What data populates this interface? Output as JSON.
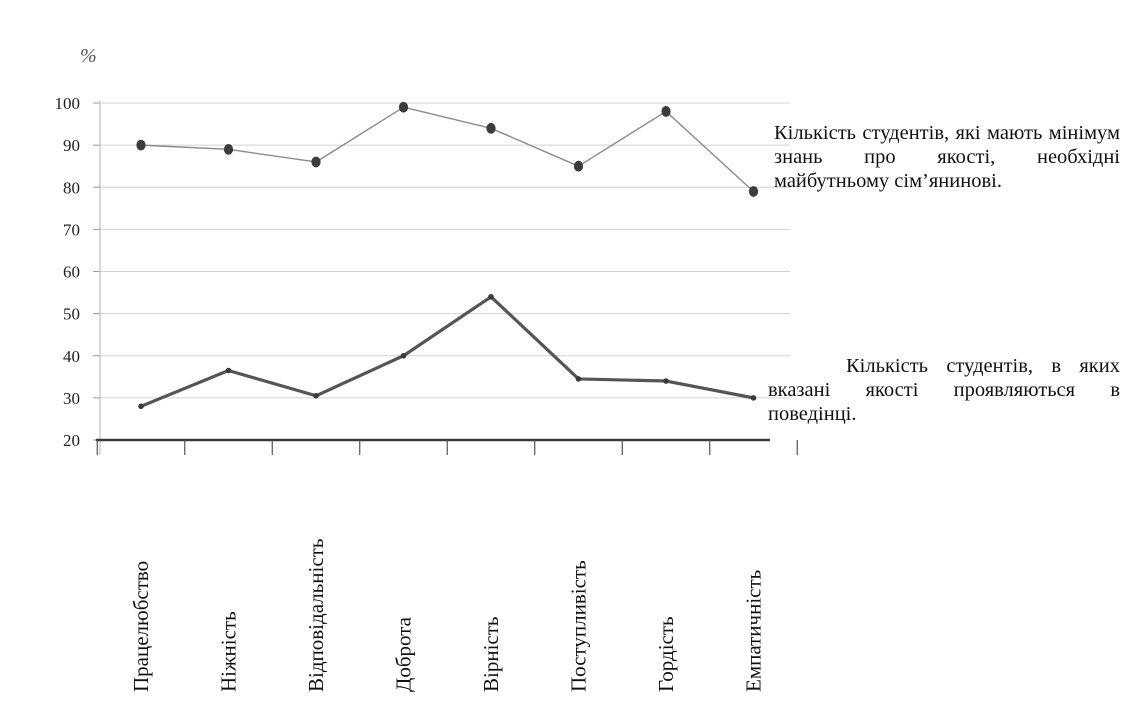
{
  "chart_data": {
    "type": "line",
    "unit_label": "%",
    "categories": [
      "Працелюбство",
      "Ніжність",
      "Відповідальність",
      "Доброта",
      "Вірність",
      "Поступливість",
      "Гордість",
      "Емпатичність"
    ],
    "y_ticks": [
      "100",
      "90",
      "80",
      "70",
      "60",
      "50",
      "40",
      "30",
      "20"
    ],
    "ylim": [
      20,
      100
    ],
    "grid": true,
    "series": [
      {
        "name": "Кількість студентів, які мають мінімум знань про якості, необхідні майбутньому сім’янинові.",
        "values": [
          90,
          89,
          86,
          99,
          94,
          85,
          98,
          79
        ],
        "color": "#8a8a8a"
      },
      {
        "name": "Кількість студентів, в яких вказані якості проявляються в поведінці.",
        "values": [
          28,
          36.5,
          30.5,
          40,
          54,
          34.5,
          34,
          30
        ],
        "color": "#555555"
      }
    ]
  },
  "legend": {
    "top": "Кількість студентів, які мають мінімум знань про якості, необхідні майбутньому сім’янинові.",
    "bottom": "Кількість студентів, в яких вказані якості проявляються в поведінці."
  }
}
